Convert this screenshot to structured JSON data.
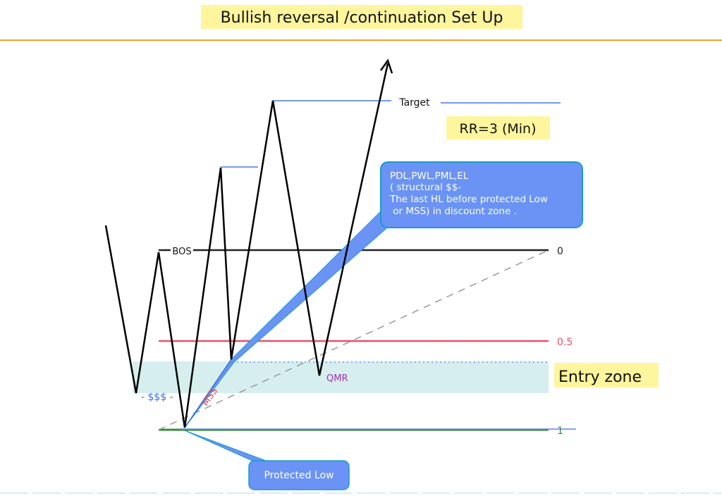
{
  "title": "Bullish reversal /continuation Set Up",
  "labels": {
    "target": "Target",
    "rr": "RR=3 (Min)",
    "bos": "BOS",
    "level_0": "0",
    "level_05": "0.5",
    "level_1": "1",
    "entry_zone": "Entry zone",
    "qmr": "QMR",
    "mss": "MSS",
    "sss": "- $$$ -",
    "protected_low": "Protected Low"
  },
  "callout": {
    "lines": [
      "PDL,PWL,PML,EL",
      "( structural $$-",
      "The last HL before protected Low",
      " or MSS) in discount zone ."
    ]
  },
  "colors": {
    "highlight": "#fff59d",
    "header_rule": "#f0a030",
    "callout": "#6b93f5",
    "entry_zone": "#d6eeee",
    "level_05": "#e8506a",
    "level_1": "#3a8a3a",
    "bos": "#222222",
    "qmr": "#a030b0",
    "mss": "#e04050",
    "sss": "#3b6ee0"
  }
}
